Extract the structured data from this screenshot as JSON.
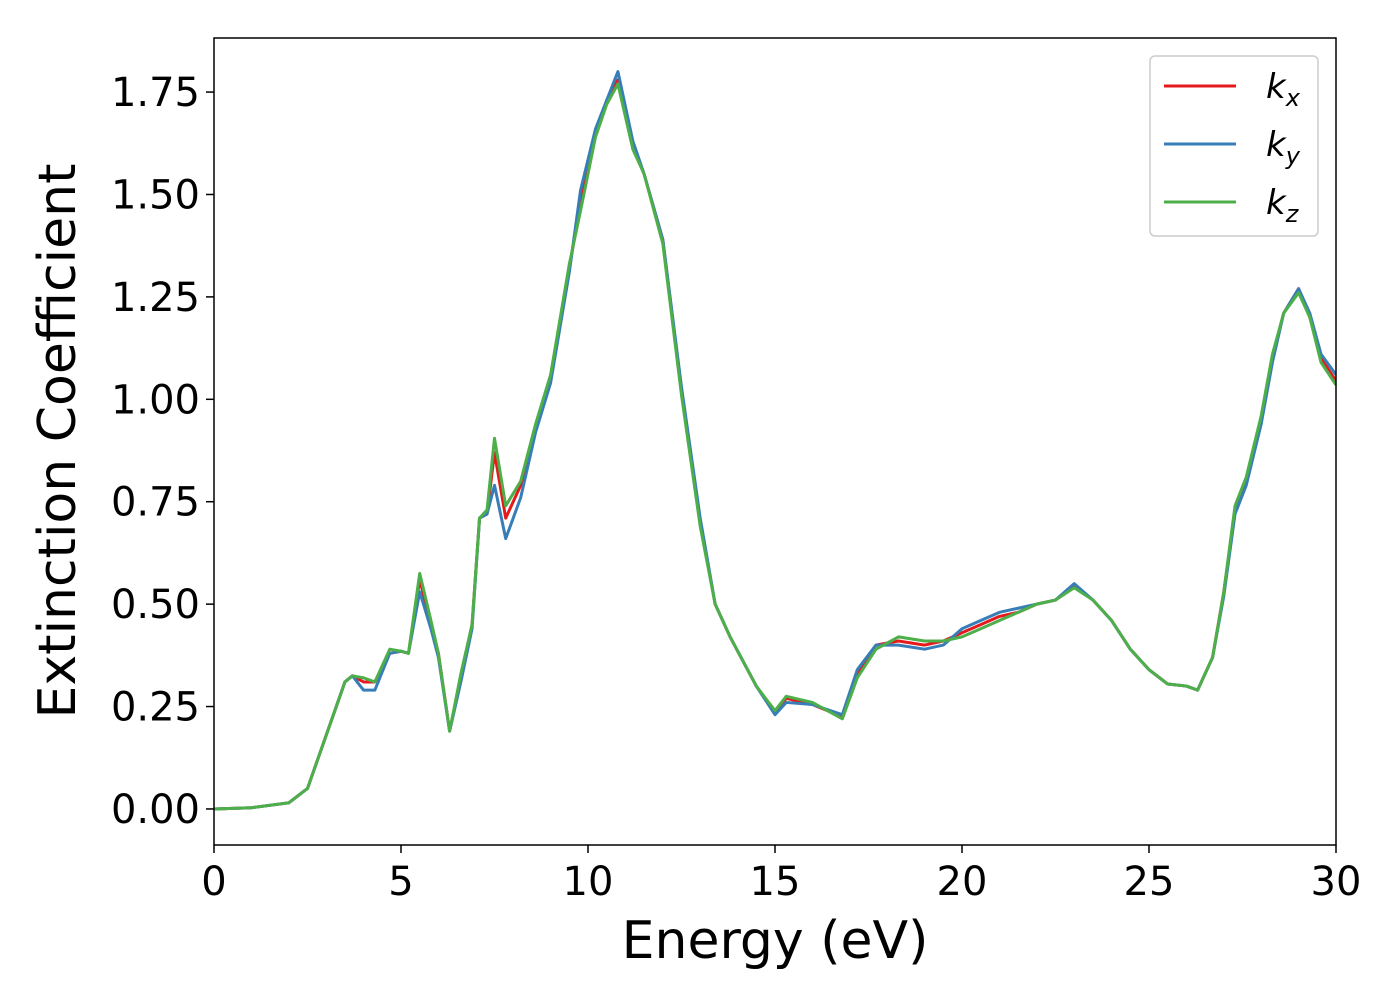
{
  "chart_data": {
    "type": "line",
    "xlabel": "Energy (eV)",
    "ylabel": "Extinction Coefficient",
    "x": [
      0,
      1,
      2,
      2.5,
      3,
      3.5,
      3.7,
      4,
      4.3,
      4.7,
      5,
      5.2,
      5.5,
      5.8,
      6.0,
      6.3,
      6.6,
      6.9,
      7.1,
      7.3,
      7.5,
      7.8,
      8.2,
      8.6,
      9,
      9.5,
      9.8,
      10.2,
      10.5,
      10.8,
      11.2,
      11.5,
      12,
      12.5,
      13,
      13.4,
      13.8,
      14.5,
      15,
      15.3,
      16,
      16.8,
      17.2,
      17.7,
      18.3,
      19,
      19.5,
      20,
      20.5,
      21,
      21.5,
      22,
      22.5,
      23,
      23.5,
      24,
      24.5,
      25,
      25.5,
      26,
      26.3,
      26.7,
      27,
      27.3,
      27.6,
      28,
      28.3,
      28.6,
      29,
      29.3,
      29.6,
      30
    ],
    "series": [
      {
        "name": "kx",
        "color": "#e41a1c",
        "values": [
          0,
          0.003,
          0.015,
          0.05,
          0.18,
          0.31,
          0.325,
          0.31,
          0.31,
          0.38,
          0.385,
          0.38,
          0.56,
          0.45,
          0.38,
          0.19,
          0.32,
          0.45,
          0.71,
          0.72,
          0.87,
          0.71,
          0.79,
          0.93,
          1.05,
          1.32,
          1.48,
          1.65,
          1.73,
          1.78,
          1.62,
          1.55,
          1.39,
          1.02,
          0.7,
          0.5,
          0.42,
          0.3,
          0.235,
          0.27,
          0.255,
          0.225,
          0.33,
          0.4,
          0.41,
          0.4,
          0.41,
          0.43,
          0.45,
          0.47,
          0.48,
          0.5,
          0.51,
          0.545,
          0.51,
          0.46,
          0.39,
          0.34,
          0.305,
          0.3,
          0.29,
          0.37,
          0.53,
          0.73,
          0.8,
          0.95,
          1.1,
          1.21,
          1.27,
          1.2,
          1.1,
          1.045
        ]
      },
      {
        "name": "ky",
        "color": "#377eb8",
        "values": [
          0,
          0.003,
          0.015,
          0.05,
          0.18,
          0.31,
          0.325,
          0.29,
          0.29,
          0.38,
          0.385,
          0.38,
          0.53,
          0.44,
          0.37,
          0.19,
          0.31,
          0.44,
          0.71,
          0.72,
          0.79,
          0.66,
          0.76,
          0.92,
          1.04,
          1.31,
          1.51,
          1.66,
          1.73,
          1.8,
          1.63,
          1.55,
          1.39,
          1.03,
          0.71,
          0.5,
          0.42,
          0.3,
          0.23,
          0.26,
          0.255,
          0.23,
          0.34,
          0.4,
          0.4,
          0.39,
          0.4,
          0.44,
          0.46,
          0.48,
          0.49,
          0.5,
          0.51,
          0.55,
          0.51,
          0.46,
          0.39,
          0.34,
          0.305,
          0.3,
          0.29,
          0.37,
          0.52,
          0.72,
          0.79,
          0.94,
          1.09,
          1.21,
          1.27,
          1.21,
          1.11,
          1.06
        ]
      },
      {
        "name": "kz",
        "color": "#4daf4a",
        "values": [
          0,
          0.003,
          0.015,
          0.05,
          0.18,
          0.31,
          0.325,
          0.32,
          0.31,
          0.39,
          0.385,
          0.38,
          0.575,
          0.46,
          0.38,
          0.19,
          0.33,
          0.45,
          0.71,
          0.73,
          0.905,
          0.74,
          0.8,
          0.94,
          1.06,
          1.33,
          1.46,
          1.64,
          1.72,
          1.77,
          1.61,
          1.55,
          1.38,
          1.01,
          0.69,
          0.5,
          0.42,
          0.3,
          0.24,
          0.275,
          0.26,
          0.22,
          0.32,
          0.39,
          0.42,
          0.41,
          0.41,
          0.42,
          0.44,
          0.46,
          0.48,
          0.5,
          0.51,
          0.54,
          0.51,
          0.46,
          0.39,
          0.34,
          0.305,
          0.3,
          0.29,
          0.37,
          0.53,
          0.74,
          0.81,
          0.96,
          1.11,
          1.21,
          1.26,
          1.2,
          1.09,
          1.035
        ]
      }
    ],
    "xlim": [
      0,
      30
    ],
    "xticks": [
      0,
      5,
      10,
      15,
      20,
      25,
      30
    ],
    "ylim": [
      -0.088,
      1.882
    ],
    "yticks": [
      {
        "value": 0,
        "label": "0.00"
      },
      0.25,
      {
        "value": 0.5,
        "label": "0.50"
      },
      0.75,
      {
        "value": 1,
        "label": "1.00"
      },
      1.25,
      {
        "value": 1.5,
        "label": "1.50"
      },
      1.75
    ],
    "legend": "upper right"
  }
}
